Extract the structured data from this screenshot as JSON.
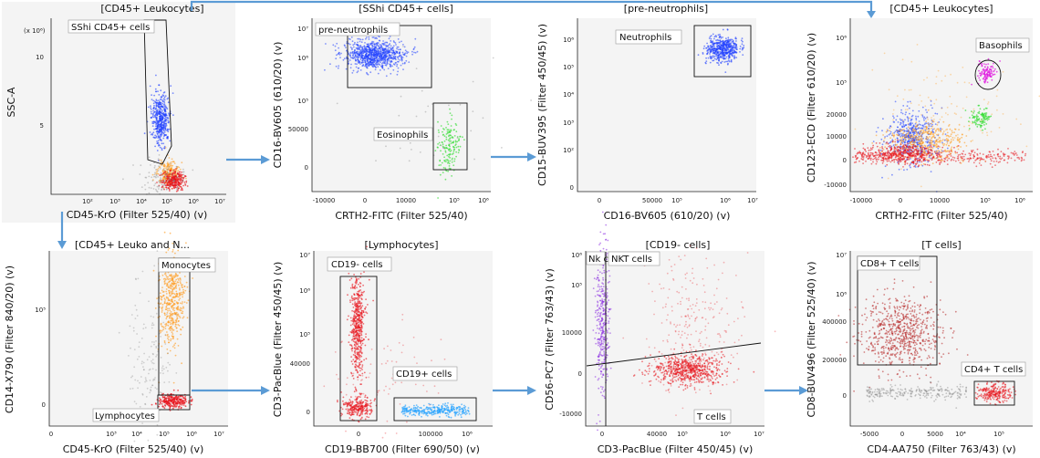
{
  "chart_data": [
    {
      "type": "scatter",
      "title": "[CD45+ Leukocytes]",
      "xlabel": "CD45-KrO (Filter 525/40) (v)",
      "ylabel": "SSC-A",
      "x_ticks": [
        "10²",
        "10³",
        "10⁴",
        "10⁵",
        "10⁶",
        "10⁷"
      ],
      "y_ticks": [
        "5",
        "10"
      ],
      "y_multiplier": "(x 10⁶)",
      "gates": [
        {
          "label": "SShi CD45+ cells"
        }
      ]
    },
    {
      "type": "scatter",
      "title": "[SShi CD45+ cells]",
      "xlabel": "CRTH2-FITC (Filter 525/40)",
      "ylabel": "CD16-BV605 (610/20) (v)",
      "x_ticks": [
        "-10000",
        "0",
        "10000",
        "10⁵",
        "10⁶"
      ],
      "y_ticks": [
        "0",
        "50000",
        "10⁵",
        "10⁶",
        "10⁷"
      ],
      "gates": [
        {
          "label": "pre-neutrophils"
        },
        {
          "label": "Eosinophils"
        }
      ]
    },
    {
      "type": "scatter",
      "title": "[pre-neutrophils]",
      "xlabel": "CD16-BV605 (610/20) (v)",
      "ylabel": "CD15-BUV395 (Filter 450/45) (v)",
      "x_ticks": [
        "0",
        "50000",
        "10⁵",
        "10⁶",
        "10⁷"
      ],
      "y_ticks": [
        "0",
        "10²",
        "10³",
        "10⁴",
        "10⁵",
        "10⁶"
      ],
      "gates": [
        {
          "label": "Neutrophils"
        }
      ]
    },
    {
      "type": "scatter",
      "title": "[CD45+ Leukocytes]",
      "xlabel": "CRTH2-FITC (Filter 525/40)",
      "ylabel": "CD123-ECD (Filter 610/20) (v)",
      "x_ticks": [
        "-10000",
        "0",
        "10000",
        "10⁵",
        "10⁶"
      ],
      "y_ticks": [
        "-10000",
        "0",
        "10000",
        "20000",
        "10⁵",
        "10⁶"
      ],
      "gates": [
        {
          "label": "Basophils"
        }
      ]
    },
    {
      "type": "scatter",
      "title": "[CD45+ Leuko and N...",
      "xlabel": "CD45-KrO (Filter 525/40) (v)",
      "ylabel": "CD14-X790 (Filter 840/20) (v)",
      "x_ticks": [
        "0",
        "10³",
        "10⁴",
        "10⁵",
        "10⁶",
        "10⁷"
      ],
      "y_ticks": [
        "0",
        "10⁵"
      ],
      "gates": [
        {
          "label": "Monocytes"
        },
        {
          "label": "Lymphocytes"
        }
      ]
    },
    {
      "type": "scatter",
      "title": "[Lymphocytes]",
      "xlabel": "CD19-BB700 (Filter 690/50) (v)",
      "ylabel": "CD3-PacBlue (Filter 450/45) (v)",
      "x_ticks": [
        "0",
        "100000",
        "10⁶"
      ],
      "y_ticks": [
        "0",
        "40000",
        "10⁵",
        "10⁶",
        "10⁷"
      ],
      "gates": [
        {
          "label": "CD19- cells"
        },
        {
          "label": "CD19+ cells"
        }
      ]
    },
    {
      "type": "scatter",
      "title": "[CD19- cells]",
      "xlabel": "CD3-PacBlue (Filter 450/45) (v)",
      "ylabel": "CD56-PC7 (Filter 763/43) (v)",
      "x_ticks": [
        "0",
        "40000",
        "10⁵",
        "10⁶",
        "10⁷"
      ],
      "y_ticks": [
        "-10000",
        "0",
        "10000",
        "10⁵",
        "10⁶"
      ],
      "gates": [
        {
          "label": "Nk c..."
        },
        {
          "label": "NKT cells"
        },
        {
          "label": "T cells"
        }
      ]
    },
    {
      "type": "scatter",
      "title": "[T cells]",
      "xlabel": "CD4-AA750 (Filter 763/43) (v)",
      "ylabel": "CD8-BUV496 (Filter 525/40) (v)",
      "x_ticks": [
        "-5000",
        "0",
        "5000",
        "10⁴",
        "10⁵"
      ],
      "y_ticks": [
        "0",
        "200000",
        "400000",
        "10⁶",
        "10⁷"
      ],
      "gates": [
        {
          "label": "CD8+ T cells"
        },
        {
          "label": "CD4+ T cells"
        }
      ]
    }
  ],
  "colors": {
    "arrow": "#5b9bd5",
    "blue": "#1f3fff",
    "red": "#e8141c",
    "orange": "#ff9a1a",
    "green": "#33dd33",
    "magenta": "#e020e0",
    "lightblue": "#1ea0ff",
    "purple": "#8a2be2",
    "darkred": "#b01010",
    "grey": "#888888"
  }
}
